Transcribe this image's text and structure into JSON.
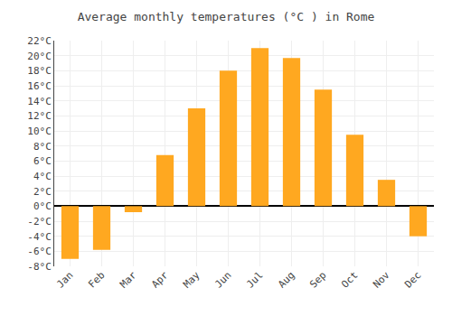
{
  "chart_data": {
    "type": "bar",
    "title": "Average monthly temperatures (°C ) in Rome",
    "categories": [
      "Jan",
      "Feb",
      "Mar",
      "Apr",
      "May",
      "Jun",
      "Jul",
      "Aug",
      "Sep",
      "Oct",
      "Nov",
      "Dec"
    ],
    "values": [
      -7.0,
      -5.8,
      -0.8,
      6.8,
      13.0,
      18.0,
      21.0,
      19.7,
      15.5,
      9.5,
      3.5,
      -4.0
    ],
    "color": "#FFA820",
    "ylim": [
      -8,
      22
    ],
    "yticks": [
      {
        "value": -8,
        "label": "-8°C"
      },
      {
        "value": -6,
        "label": "-6°C"
      },
      {
        "value": -4,
        "label": "-4°C"
      },
      {
        "value": -2,
        "label": "-2°C"
      },
      {
        "value": 0,
        "label": "0°C"
      },
      {
        "value": 2,
        "label": "2°C"
      },
      {
        "value": 4,
        "label": "4°C"
      },
      {
        "value": 6,
        "label": "6°C"
      },
      {
        "value": 8,
        "label": "8°C"
      },
      {
        "value": 10,
        "label": "10°C"
      },
      {
        "value": 12,
        "label": "12°C"
      },
      {
        "value": 14,
        "label": "14°C"
      },
      {
        "value": 16,
        "label": "16°C"
      },
      {
        "value": 18,
        "label": "18°C"
      },
      {
        "value": 20,
        "label": "20°C"
      },
      {
        "value": 22,
        "label": "22°C"
      }
    ],
    "grid": true
  }
}
